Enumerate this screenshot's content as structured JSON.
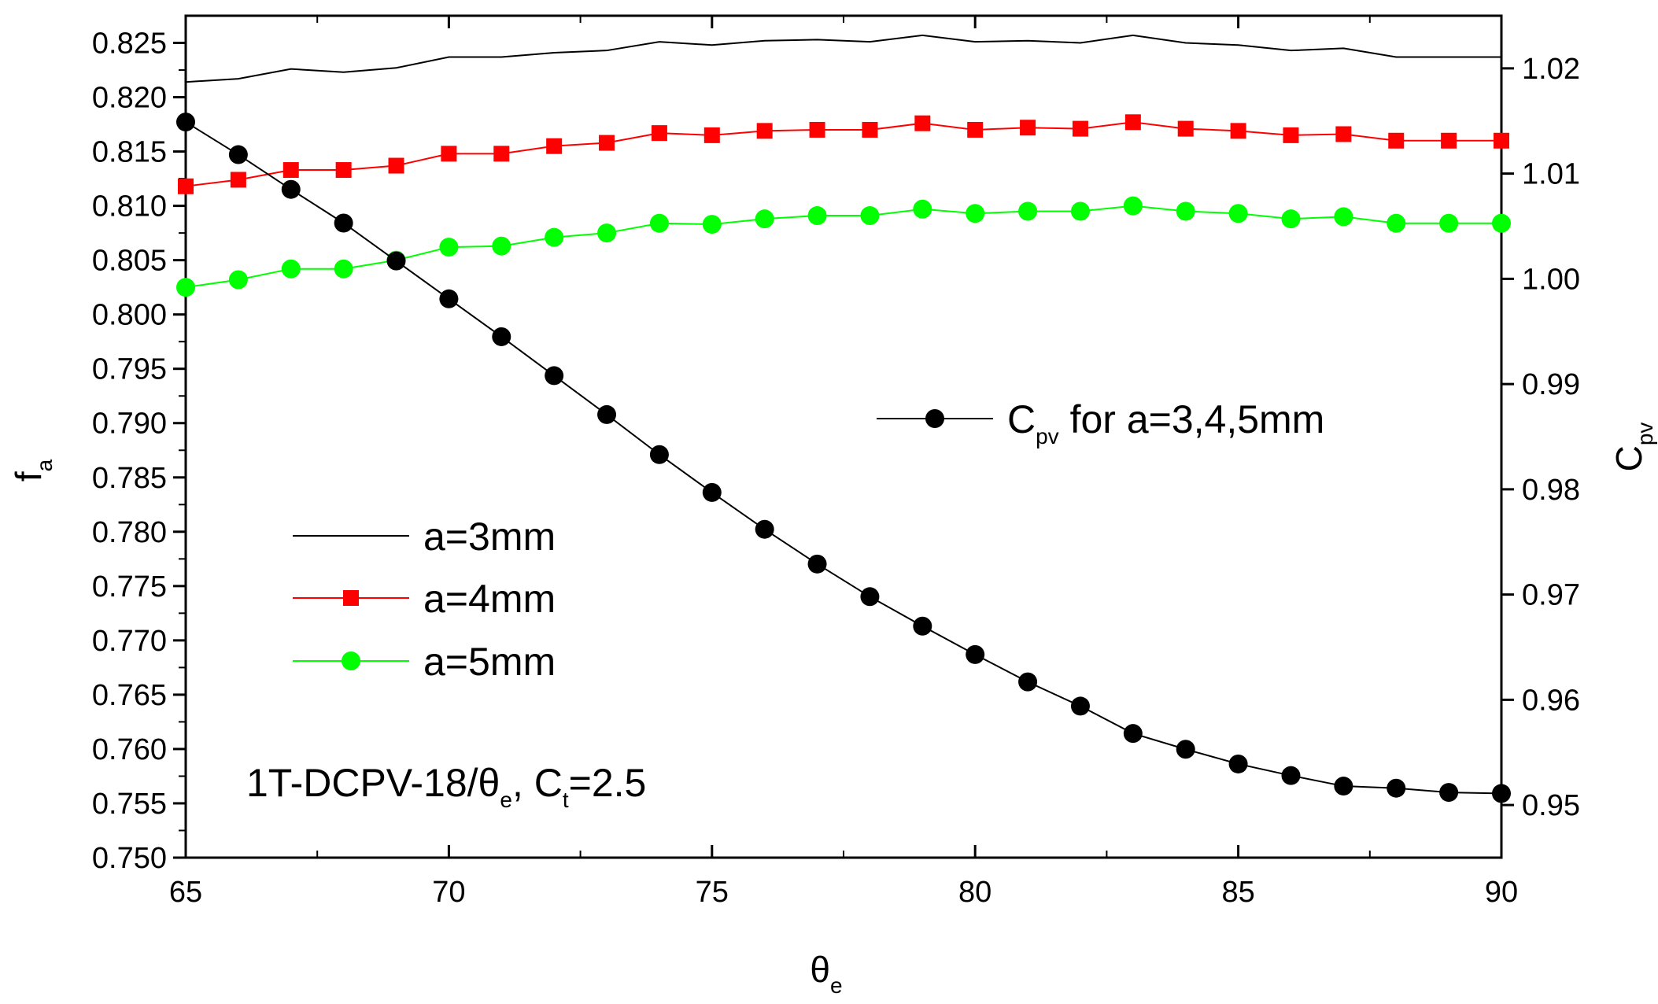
{
  "chart_data": {
    "type": "line",
    "x": [
      65,
      66,
      67,
      68,
      69,
      70,
      71,
      72,
      73,
      74,
      75,
      76,
      77,
      78,
      79,
      80,
      81,
      82,
      83,
      84,
      85,
      86,
      87,
      88,
      89,
      90
    ],
    "xlabel": "θ",
    "xlabel_sub": "e",
    "xlim": [
      65,
      90
    ],
    "xticks": [
      "65",
      "70",
      "75",
      "80",
      "85",
      "90"
    ],
    "ylabel": "f",
    "ylabel_sub": "a",
    "ylim": [
      0.75,
      0.8275
    ],
    "yticks": [
      "0.750",
      "0.755",
      "0.760",
      "0.765",
      "0.770",
      "0.775",
      "0.780",
      "0.785",
      "0.790",
      "0.795",
      "0.800",
      "0.805",
      "0.810",
      "0.815",
      "0.820",
      "0.825"
    ],
    "y2label": "C",
    "y2label_sub": "pv",
    "y2lim": [
      0.945,
      1.025
    ],
    "y2ticks": [
      "0.95",
      "0.96",
      "0.97",
      "0.98",
      "0.99",
      "1.00",
      "1.01",
      "1.02"
    ],
    "series": [
      {
        "name": "a=3mm",
        "axis": "left",
        "color": "#000000",
        "marker": "none",
        "values": [
          0.8214,
          0.8217,
          0.8226,
          0.8223,
          0.8227,
          0.8237,
          0.8237,
          0.8241,
          0.8243,
          0.8251,
          0.8248,
          0.8252,
          0.8253,
          0.8251,
          0.8257,
          0.8251,
          0.8252,
          0.825,
          0.8257,
          0.825,
          0.8248,
          0.8243,
          0.8245,
          0.8237,
          0.8237,
          0.8237
        ]
      },
      {
        "name": "a=4mm",
        "axis": "left",
        "color": "#ff0000",
        "marker": "square",
        "values": [
          0.8118,
          0.8124,
          0.8133,
          0.8133,
          0.8137,
          0.8148,
          0.8148,
          0.8155,
          0.8158,
          0.8167,
          0.8165,
          0.8169,
          0.817,
          0.817,
          0.8176,
          0.817,
          0.8172,
          0.8171,
          0.8177,
          0.8171,
          0.8169,
          0.8165,
          0.8166,
          0.816,
          0.816,
          0.816
        ]
      },
      {
        "name": "a=5mm",
        "axis": "left",
        "color": "#00ff00",
        "marker": "circle",
        "values": [
          0.8025,
          0.8032,
          0.8042,
          0.8042,
          0.805,
          0.8062,
          0.8063,
          0.8071,
          0.8075,
          0.8084,
          0.8083,
          0.8088,
          0.8091,
          0.8091,
          0.8097,
          0.8093,
          0.8095,
          0.8095,
          0.81,
          0.8095,
          0.8093,
          0.8088,
          0.809,
          0.8084,
          0.8084,
          0.8084
        ]
      },
      {
        "name": "Cpv for a=3,4,5mm",
        "axis": "right",
        "color": "#000000",
        "marker": "circle",
        "values": [
          1.0149,
          1.0118,
          1.0085,
          1.0053,
          1.0017,
          0.9981,
          0.9945,
          0.9908,
          0.9871,
          0.9833,
          0.9797,
          0.9762,
          0.9729,
          0.9698,
          0.967,
          0.9643,
          0.9617,
          0.9594,
          0.9568,
          0.9553,
          0.9539,
          0.9528,
          0.9518,
          0.9516,
          0.9512,
          0.9511
        ]
      }
    ],
    "legend": {
      "position": "center-left",
      "entries": [
        {
          "label": "a=3mm"
        },
        {
          "label": "a=4mm"
        },
        {
          "label": "a=5mm"
        }
      ]
    },
    "legend2": {
      "position": "center-right",
      "label_main": "C",
      "label_sub": "pv",
      "label_rest": " for a=3,4,5mm"
    },
    "annotation": {
      "position": "bottom-left",
      "part1": "1T-DCPV-18/θ",
      "part1_sub": "e",
      "part2": ", C",
      "part2_sub": "t",
      "part3": "=2.5"
    }
  }
}
